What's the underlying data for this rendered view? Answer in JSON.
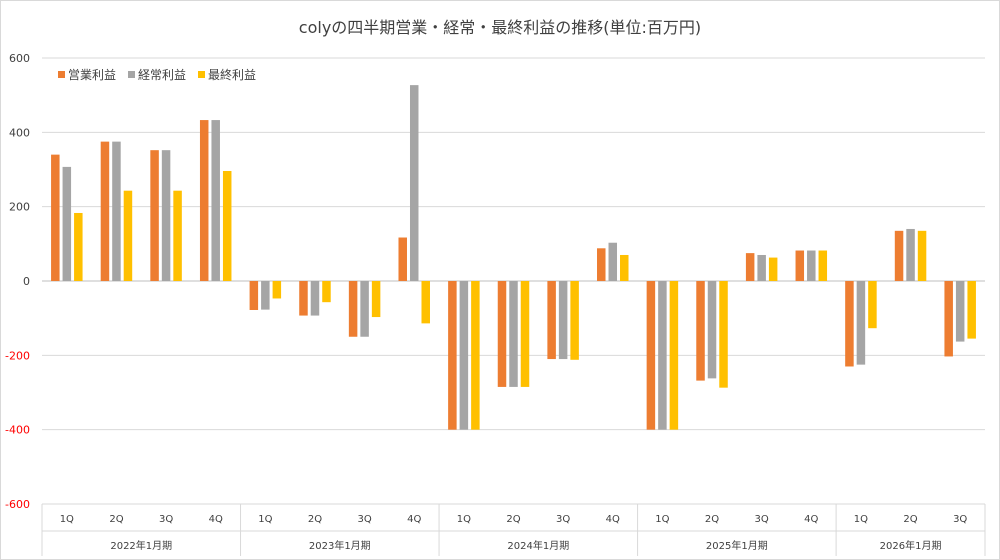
{
  "chart_data": {
    "type": "bar",
    "title": "colyの四半期営業・経常・最終利益の推移(単位:百万円)",
    "ylim": [
      -600,
      600
    ],
    "yticks": [
      600,
      400,
      200,
      0,
      -200,
      -400,
      -600
    ],
    "grid": true,
    "legend_position": "top-left",
    "groups": [
      {
        "label": "2022年1月期",
        "quarters": [
          "1Q",
          "2Q",
          "3Q",
          "4Q"
        ]
      },
      {
        "label": "2023年1月期",
        "quarters": [
          "1Q",
          "2Q",
          "3Q",
          "4Q"
        ]
      },
      {
        "label": "2024年1月期",
        "quarters": [
          "1Q",
          "2Q",
          "3Q",
          "4Q"
        ]
      },
      {
        "label": "2025年1月期",
        "quarters": [
          "1Q",
          "2Q",
          "3Q",
          "4Q"
        ]
      },
      {
        "label": "2026年1月期",
        "quarters": [
          "1Q",
          "2Q",
          "3Q"
        ]
      }
    ],
    "series": [
      {
        "name": "営業利益",
        "color": "#ED7D31",
        "values": [
          340,
          375,
          352,
          433,
          -78,
          -93,
          -150,
          117,
          -400,
          -285,
          -210,
          88,
          -400,
          -268,
          75,
          82,
          -230,
          135,
          -203
        ]
      },
      {
        "name": "経常利益",
        "color": "#A5A5A5",
        "values": [
          307,
          375,
          352,
          433,
          -77,
          -93,
          -150,
          527,
          -400,
          -285,
          -210,
          103,
          -400,
          -262,
          70,
          82,
          -225,
          140,
          -163
        ]
      },
      {
        "name": "最終利益",
        "color": "#FFC000",
        "values": [
          183,
          243,
          243,
          296,
          -47,
          -57,
          -97,
          -114,
          -400,
          -285,
          -212,
          70,
          -400,
          -287,
          63,
          82,
          -127,
          135,
          -155
        ]
      }
    ]
  }
}
